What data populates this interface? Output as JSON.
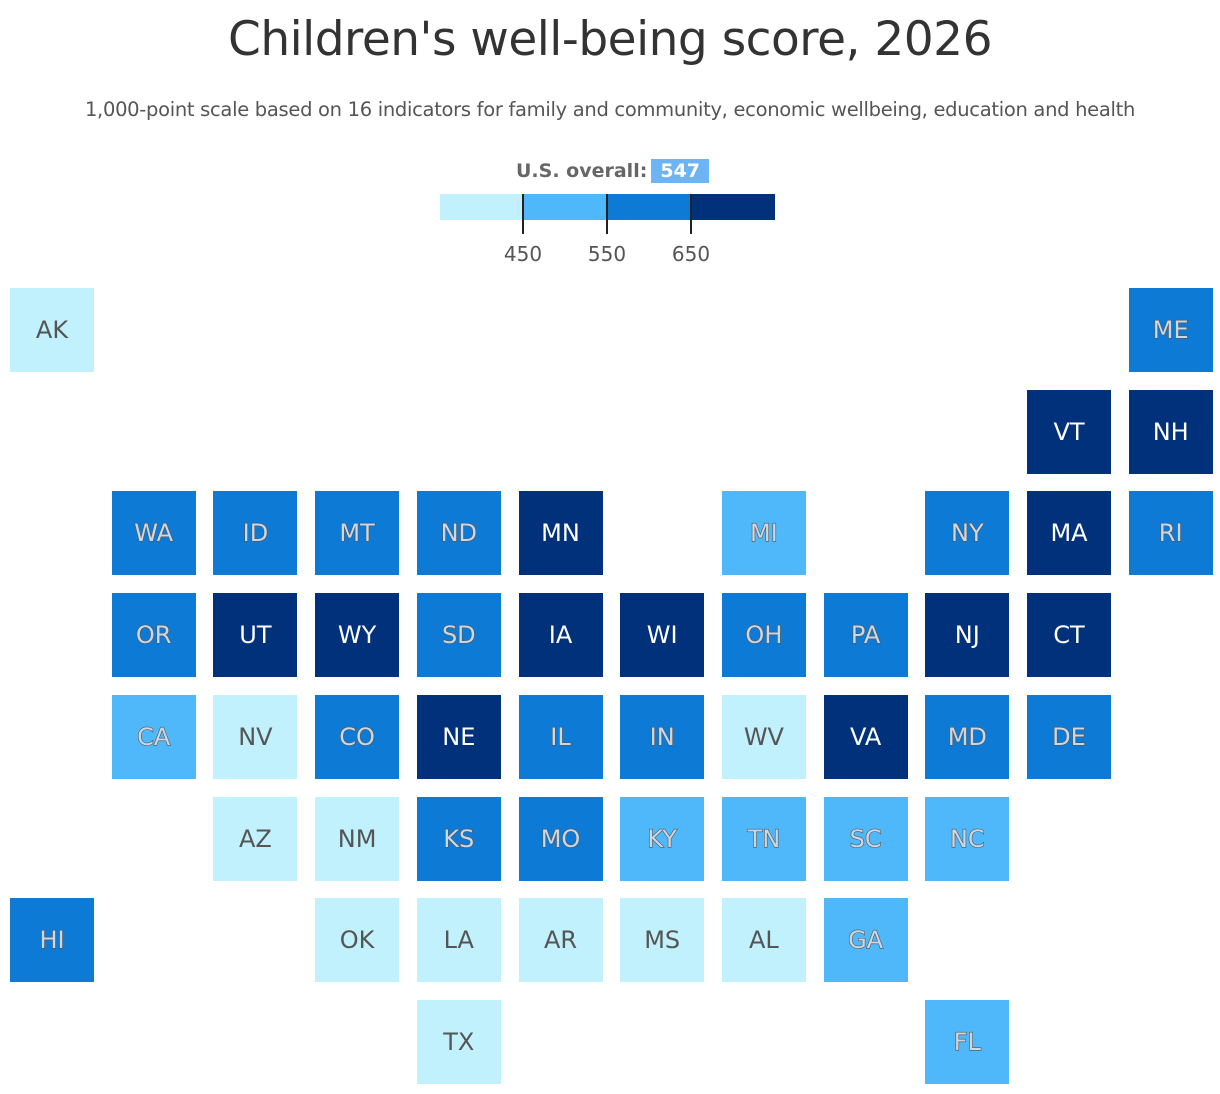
{
  "title": "Children's well-being score, 2026",
  "subtitle": "1,000-point scale based on 16 indicators for family and community, economic wellbeing, education and health",
  "legend": {
    "overall_label": "U.S. overall:",
    "overall_value": "547",
    "bins": [
      {
        "color": "#c0f1fd"
      },
      {
        "color": "#4fb8fb"
      },
      {
        "color": "#0d7ad6"
      },
      {
        "color": "#00317a"
      }
    ],
    "thresholds": [
      "450",
      "550",
      "650"
    ]
  },
  "bin_colors": [
    "#c0f1fd",
    "#4fb8fb",
    "#0d7ad6",
    "#00317a"
  ],
  "states": [
    {
      "abbr": "AK",
      "bin": 0
    },
    {
      "abbr": "ME",
      "bin": 2
    },
    {
      "abbr": "VT",
      "bin": 3
    },
    {
      "abbr": "NH",
      "bin": 3
    },
    {
      "abbr": "WA",
      "bin": 2
    },
    {
      "abbr": "ID",
      "bin": 2
    },
    {
      "abbr": "MT",
      "bin": 2
    },
    {
      "abbr": "ND",
      "bin": 2
    },
    {
      "abbr": "MN",
      "bin": 3
    },
    {
      "abbr": "MI",
      "bin": 1
    },
    {
      "abbr": "NY",
      "bin": 2
    },
    {
      "abbr": "MA",
      "bin": 3
    },
    {
      "abbr": "RI",
      "bin": 2
    },
    {
      "abbr": "OR",
      "bin": 2
    },
    {
      "abbr": "UT",
      "bin": 3
    },
    {
      "abbr": "WY",
      "bin": 3
    },
    {
      "abbr": "SD",
      "bin": 2
    },
    {
      "abbr": "IA",
      "bin": 3
    },
    {
      "abbr": "WI",
      "bin": 3
    },
    {
      "abbr": "OH",
      "bin": 2
    },
    {
      "abbr": "PA",
      "bin": 2
    },
    {
      "abbr": "NJ",
      "bin": 3
    },
    {
      "abbr": "CT",
      "bin": 3
    },
    {
      "abbr": "CA",
      "bin": 1
    },
    {
      "abbr": "NV",
      "bin": 0
    },
    {
      "abbr": "CO",
      "bin": 2
    },
    {
      "abbr": "NE",
      "bin": 3
    },
    {
      "abbr": "IL",
      "bin": 2
    },
    {
      "abbr": "IN",
      "bin": 2
    },
    {
      "abbr": "WV",
      "bin": 0
    },
    {
      "abbr": "VA",
      "bin": 3
    },
    {
      "abbr": "MD",
      "bin": 2
    },
    {
      "abbr": "DE",
      "bin": 2
    },
    {
      "abbr": "AZ",
      "bin": 0
    },
    {
      "abbr": "NM",
      "bin": 0
    },
    {
      "abbr": "KS",
      "bin": 2
    },
    {
      "abbr": "MO",
      "bin": 2
    },
    {
      "abbr": "KY",
      "bin": 1
    },
    {
      "abbr": "TN",
      "bin": 1
    },
    {
      "abbr": "SC",
      "bin": 1
    },
    {
      "abbr": "NC",
      "bin": 1
    },
    {
      "abbr": "HI",
      "bin": 2
    },
    {
      "abbr": "OK",
      "bin": 0
    },
    {
      "abbr": "LA",
      "bin": 0
    },
    {
      "abbr": "AR",
      "bin": 0
    },
    {
      "abbr": "MS",
      "bin": 0
    },
    {
      "abbr": "AL",
      "bin": 0
    },
    {
      "abbr": "GA",
      "bin": 1
    },
    {
      "abbr": "TX",
      "bin": 0
    },
    {
      "abbr": "FL",
      "bin": 1
    }
  ]
}
